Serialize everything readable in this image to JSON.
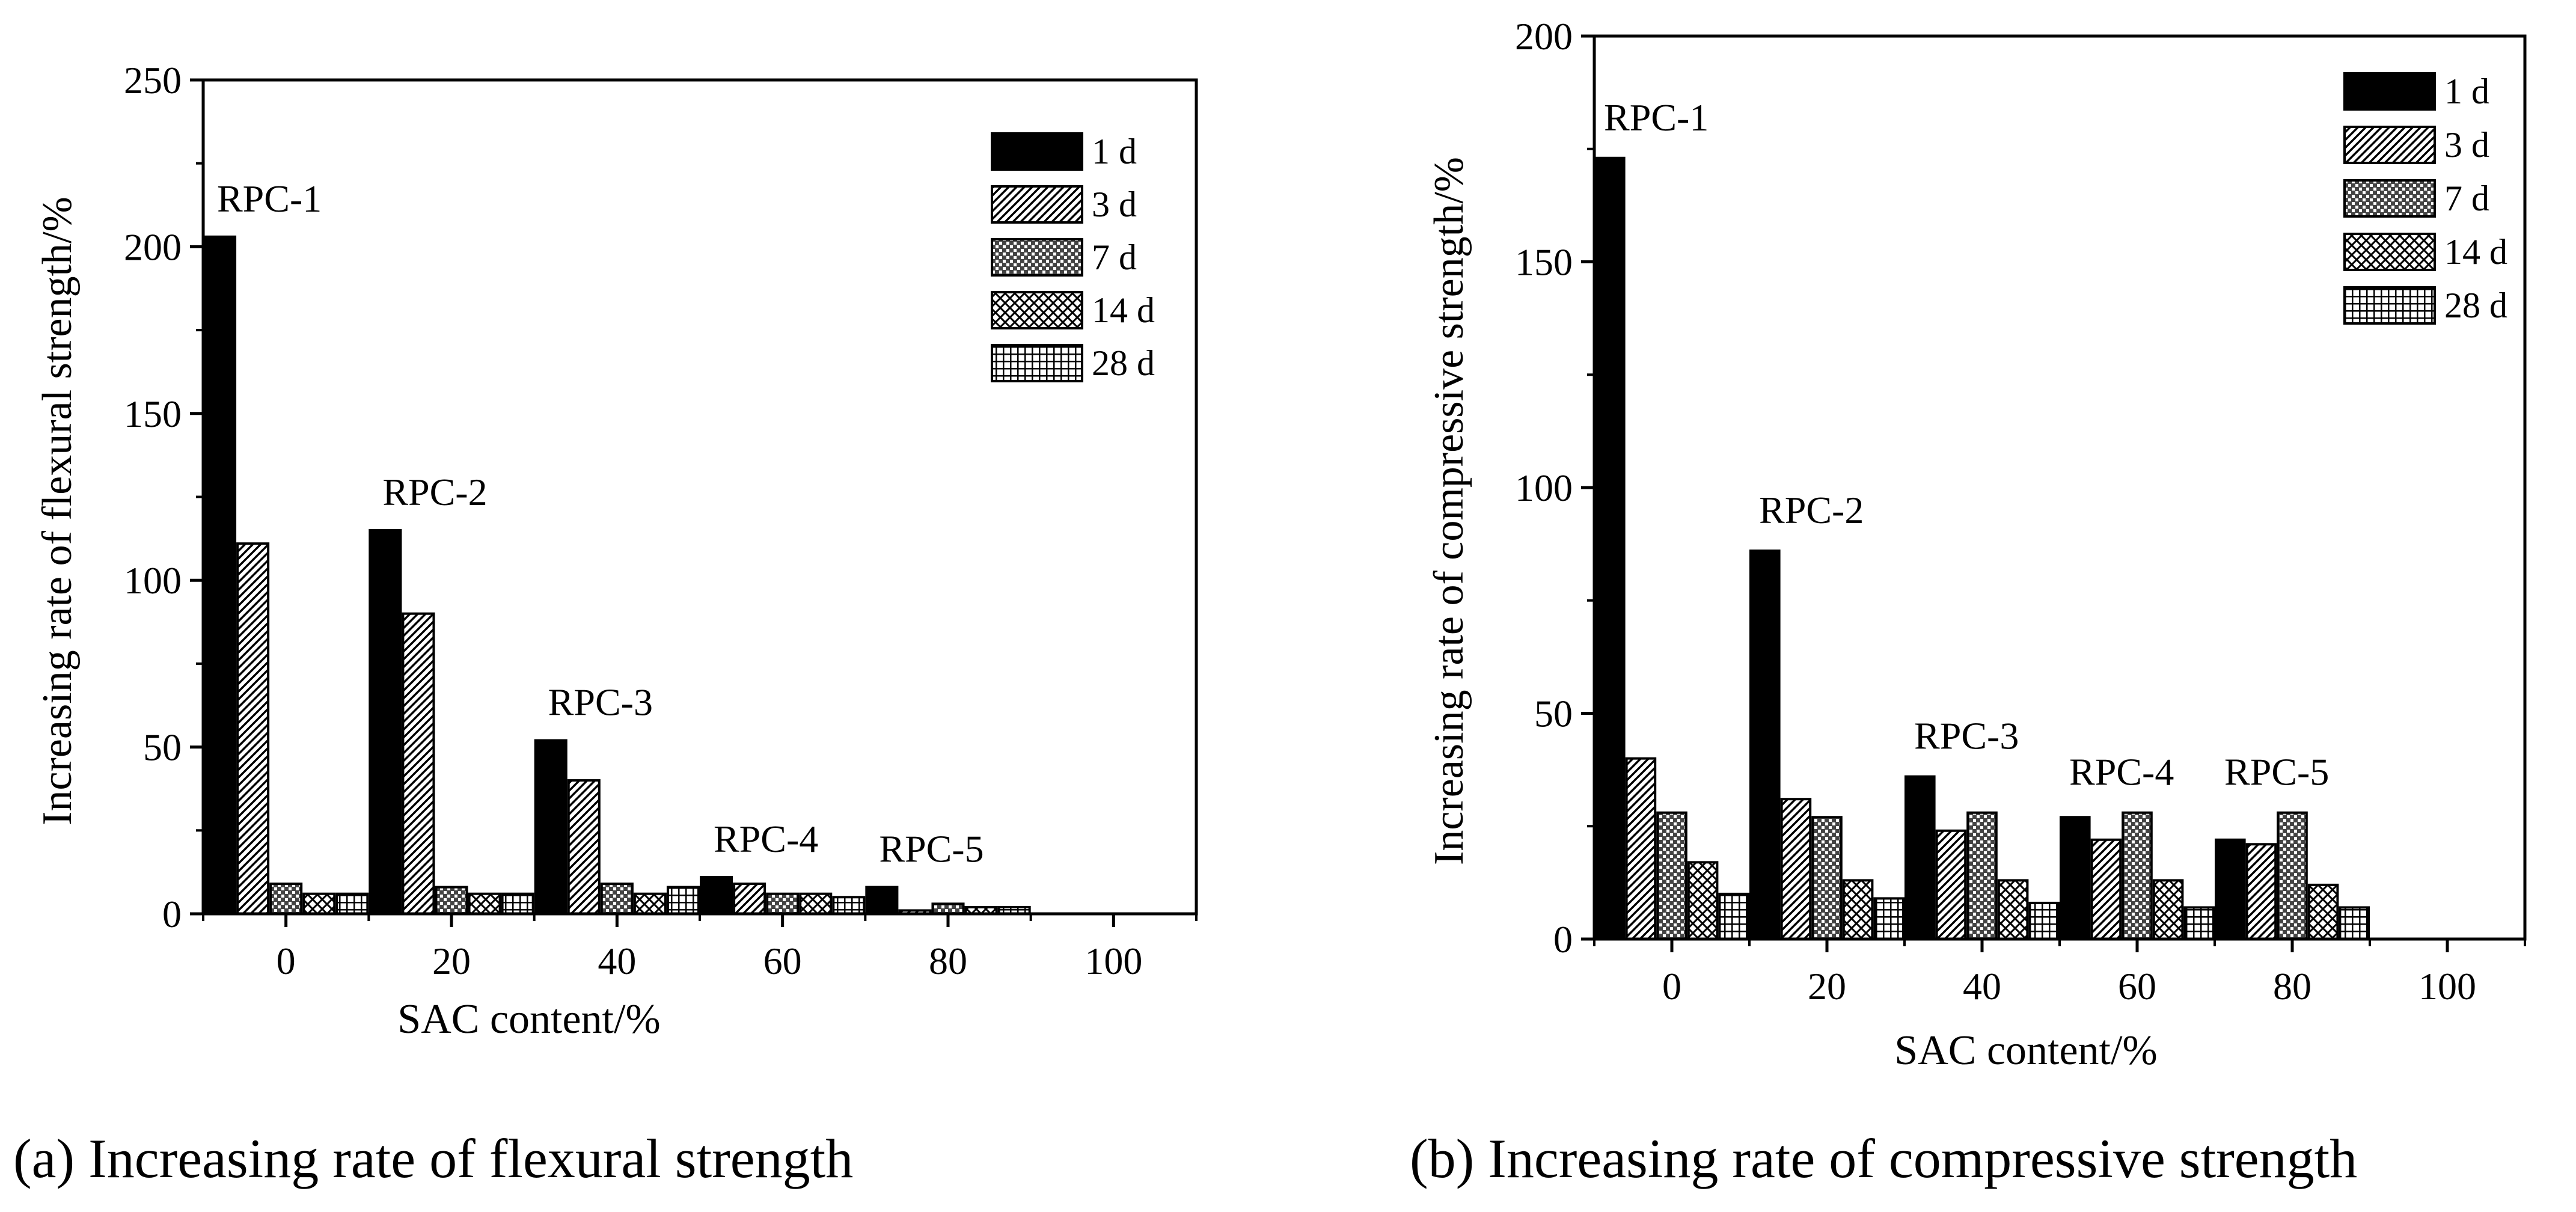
{
  "chart_data": [
    {
      "type": "bar",
      "title": "",
      "xlabel": "SAC content/%",
      "ylabel": "Increasing rate of flexural strength/%",
      "caption": "(a) Increasing rate of flexural strength",
      "ylim": [
        0,
        250
      ],
      "yticks": [
        "0",
        "50",
        "100",
        "150",
        "200",
        "250"
      ],
      "xlim": [
        -10,
        110
      ],
      "xticks": [
        "0",
        "20",
        "40",
        "60",
        "80",
        "100"
      ],
      "legend_position": "top-right",
      "categories": [
        "RPC-1",
        "RPC-2",
        "RPC-3",
        "RPC-4",
        "RPC-5"
      ],
      "series": [
        {
          "name": "1 d",
          "pattern": "solid",
          "values": [
            203,
            115,
            52,
            11,
            8
          ]
        },
        {
          "name": "3 d",
          "pattern": "diagonal",
          "values": [
            111,
            90,
            40,
            9,
            1
          ]
        },
        {
          "name": "7 d",
          "pattern": "dense-check",
          "values": [
            9,
            8,
            9,
            6,
            3
          ]
        },
        {
          "name": "14 d",
          "pattern": "crosshatch",
          "values": [
            6,
            6,
            6,
            6,
            2
          ]
        },
        {
          "name": "28 d",
          "pattern": "grid",
          "values": [
            6,
            6,
            8,
            5,
            2
          ]
        }
      ]
    },
    {
      "type": "bar",
      "title": "",
      "xlabel": "SAC content/%",
      "ylabel": "Increasing rate of compressive strength/%",
      "caption": "(b) Increasing rate of compressive strength",
      "ylim": [
        0,
        200
      ],
      "yticks": [
        "0",
        "50",
        "100",
        "150",
        "200"
      ],
      "xlim": [
        -10,
        110
      ],
      "xticks": [
        "0",
        "20",
        "40",
        "60",
        "80",
        "100"
      ],
      "legend_position": "top-right",
      "categories": [
        "RPC-1",
        "RPC-2",
        "RPC-3",
        "RPC-4",
        "RPC-5"
      ],
      "series": [
        {
          "name": "1 d",
          "pattern": "solid",
          "values": [
            173,
            86,
            36,
            27,
            22
          ]
        },
        {
          "name": "3 d",
          "pattern": "diagonal",
          "values": [
            40,
            31,
            24,
            22,
            21
          ]
        },
        {
          "name": "7 d",
          "pattern": "dense-check",
          "values": [
            28,
            27,
            28,
            28,
            28
          ]
        },
        {
          "name": "14 d",
          "pattern": "crosshatch",
          "values": [
            17,
            13,
            13,
            13,
            12
          ]
        },
        {
          "name": "28 d",
          "pattern": "grid",
          "values": [
            10,
            9,
            8,
            7,
            7
          ]
        }
      ]
    }
  ]
}
